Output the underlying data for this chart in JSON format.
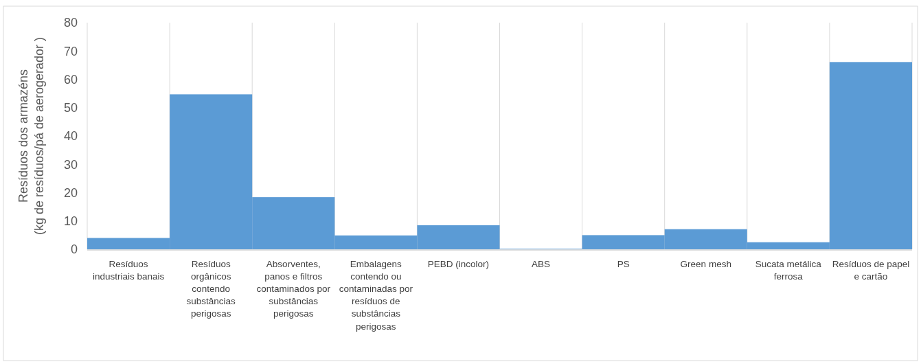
{
  "chart_data": {
    "type": "bar",
    "ylabel": "Resíduos dos armazéns\n(kg de resíduos/pá de aerogerador )",
    "categories": [
      "Resíduos industriais banais",
      "Resíduos orgânicos contendo substâncias perigosas",
      "Absorventes, panos e filtros contaminados por substâncias perigosas",
      "Embalagens contendo ou contaminadas por resíduos de substâncias perigosas",
      "PEBD (incolor)",
      "ABS",
      "PS",
      "Green mesh",
      "Sucata metálica ferrosa",
      "Resíduos de papel e cartão"
    ],
    "values": [
      4.0,
      54.7,
      18.4,
      4.9,
      8.5,
      0.2,
      5.0,
      7.1,
      2.5,
      66.1
    ],
    "color": "#5b9bd5",
    "ylim": [
      0,
      80
    ],
    "yticks": [
      0,
      10,
      20,
      30,
      40,
      50,
      60,
      70,
      80
    ],
    "grid": "x"
  }
}
